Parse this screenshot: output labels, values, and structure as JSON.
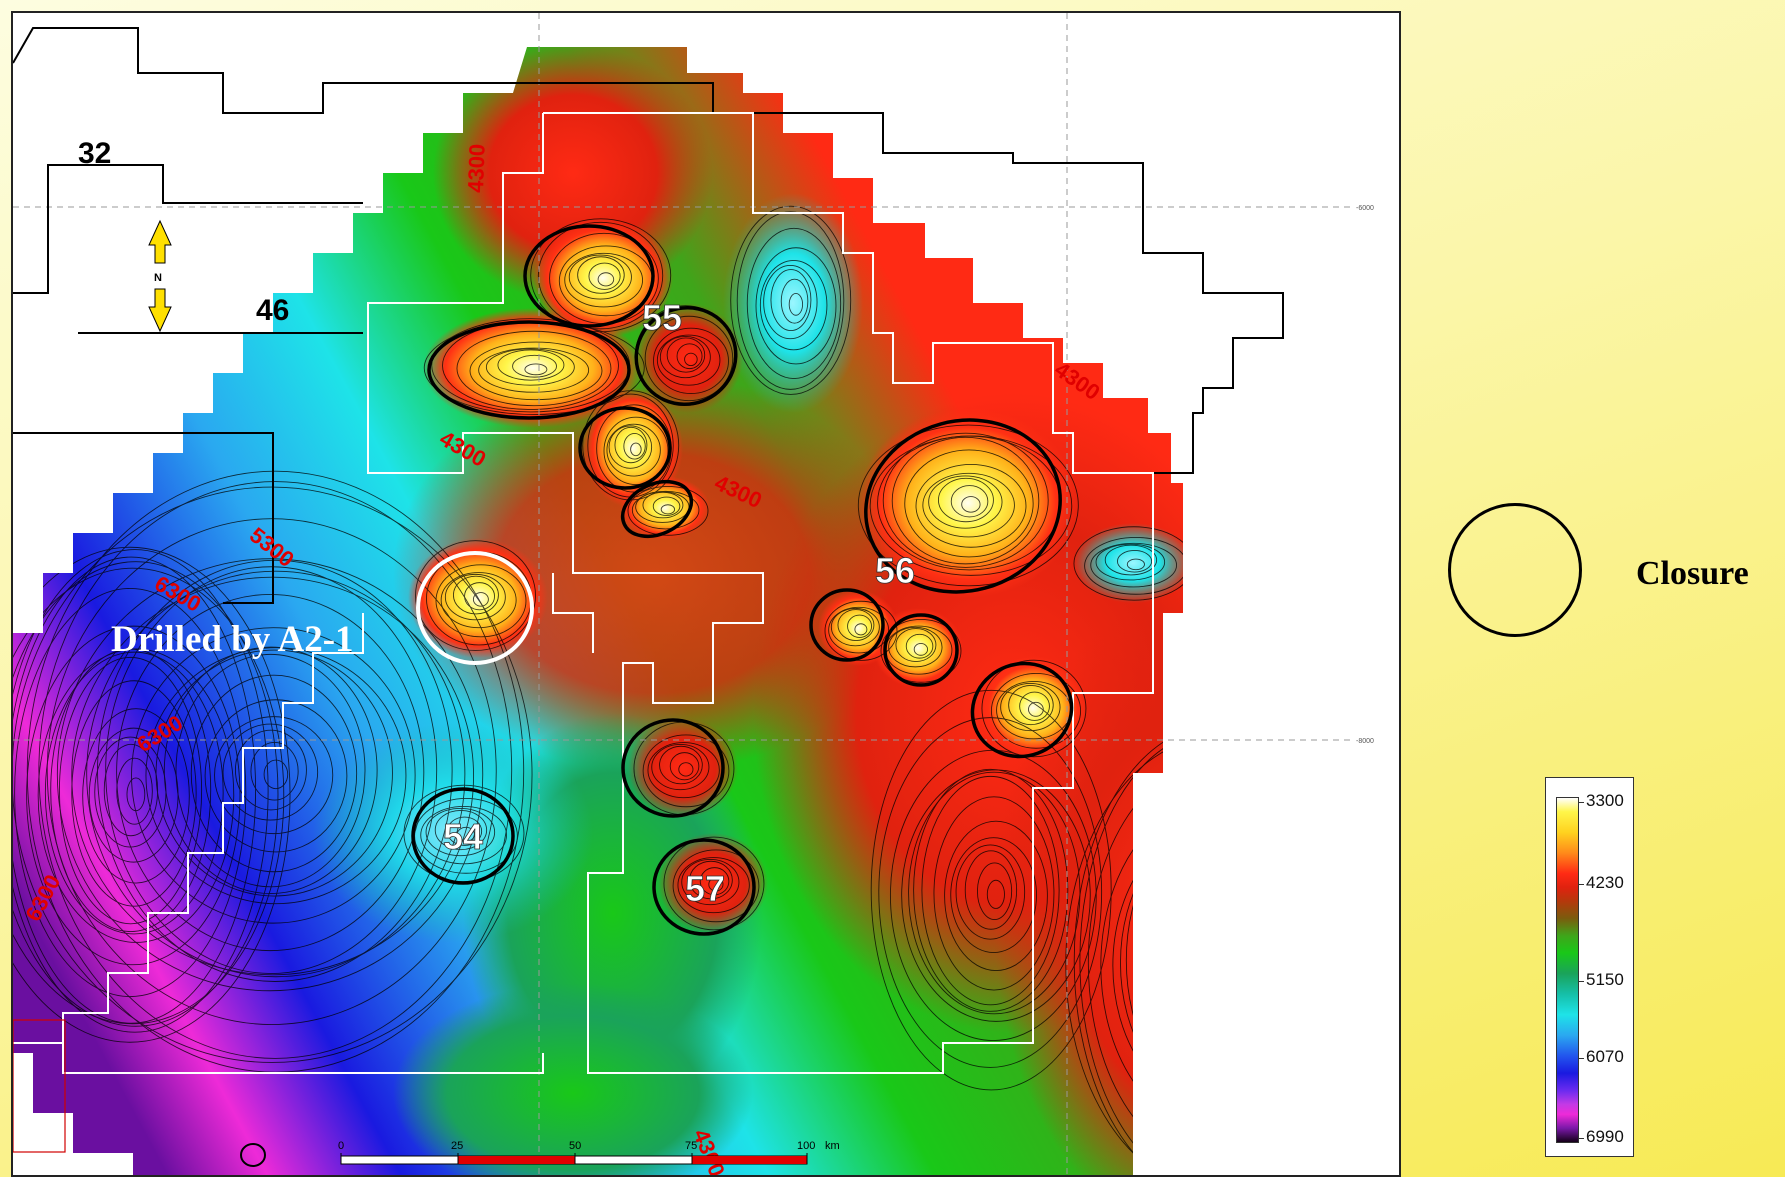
{
  "map": {
    "block_labels": [
      "32",
      "46"
    ],
    "prospects": [
      "55",
      "56",
      "54",
      "57"
    ],
    "contour_labels": [
      "4300",
      "4300",
      "4300",
      "4300",
      "5300",
      "6300",
      "6300",
      "6300",
      "4300"
    ],
    "drilled_label": "Drilled by A2-1",
    "grid_axis_labels": [
      "-6000",
      "-8000"
    ],
    "scale_bar": {
      "ticks": [
        "0",
        "25",
        "50",
        "75",
        "100"
      ],
      "unit": "km"
    },
    "north_arrow": "N"
  },
  "legend": {
    "closure_label": "Closure",
    "colorbar_ticks": [
      "3300",
      "4230",
      "5150",
      "6070",
      "6990"
    ]
  },
  "colors": {
    "high": "#ffffff",
    "yellow": "#fff64a",
    "red": "#ff2a14",
    "green": "#19c818",
    "cyan": "#1ee3e8",
    "blue": "#1a1ae0",
    "magenta": "#ee2ad8",
    "low": "#140018",
    "contour_label": "#e00000",
    "background": "#f9f09a"
  }
}
